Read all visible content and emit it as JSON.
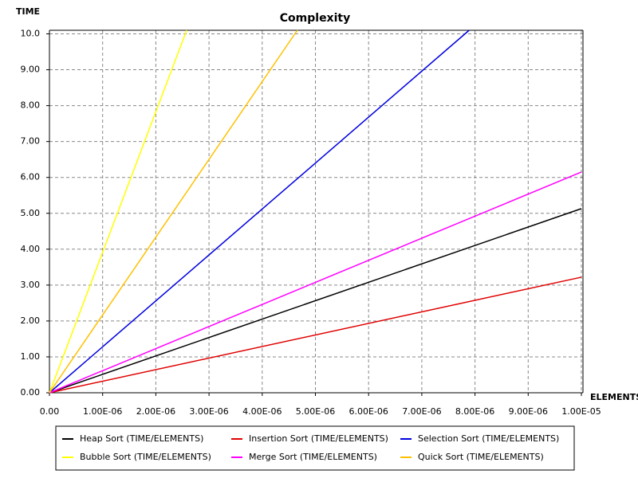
{
  "chart_data": {
    "type": "line",
    "title": "Complexity",
    "y_label": "TIME",
    "x_label": "ELEMENTS",
    "xlim": [
      0,
      1e-05
    ],
    "ylim": [
      0,
      10.1
    ],
    "xticks": [
      {
        "value": 0,
        "label": "0.00"
      },
      {
        "value": 1e-06,
        "label": "1.00E-06"
      },
      {
        "value": 2e-06,
        "label": "2.00E-06"
      },
      {
        "value": 3e-06,
        "label": "3.00E-06"
      },
      {
        "value": 4e-06,
        "label": "4.00E-06"
      },
      {
        "value": 5e-06,
        "label": "5.00E-06"
      },
      {
        "value": 6e-06,
        "label": "6.00E-06"
      },
      {
        "value": 7e-06,
        "label": "7.00E-06"
      },
      {
        "value": 8e-06,
        "label": "8.00E-06"
      },
      {
        "value": 9e-06,
        "label": "9.00E-06"
      },
      {
        "value": 1e-05,
        "label": "1.00E-05"
      }
    ],
    "yticks": [
      {
        "value": 0,
        "label": "0.00"
      },
      {
        "value": 1,
        "label": "1.00"
      },
      {
        "value": 2,
        "label": "2.00"
      },
      {
        "value": 3,
        "label": "3.00"
      },
      {
        "value": 4,
        "label": "4.00"
      },
      {
        "value": 5,
        "label": "5.00"
      },
      {
        "value": 6,
        "label": "6.00"
      },
      {
        "value": 7,
        "label": "7.00"
      },
      {
        "value": 8,
        "label": "8.00"
      },
      {
        "value": 9,
        "label": "9.00"
      },
      {
        "value": 10,
        "label": "10.0"
      }
    ],
    "grid": true,
    "series": [
      {
        "name": "Heap Sort (TIME/ELEMENTS)",
        "color": "#000000",
        "x": [
          0,
          1e-05
        ],
        "values": [
          0,
          5.13
        ]
      },
      {
        "name": "Insertion Sort (TIME/ELEMENTS)",
        "color": "#e00000",
        "x": [
          0,
          1e-05
        ],
        "values": [
          0,
          3.22
        ]
      },
      {
        "name": "Selection Sort (TIME/ELEMENTS)",
        "color": "#0000e0",
        "x": [
          0,
          7.89e-06
        ],
        "values": [
          0,
          10.1
        ]
      },
      {
        "name": "Bubble Sort (TIME/ELEMENTS)",
        "color": "#ffff00",
        "x": [
          0,
          2.58e-06
        ],
        "values": [
          0,
          10.1
        ]
      },
      {
        "name": "Merge Sort (TIME/ELEMENTS)",
        "color": "#ff00ff",
        "x": [
          0,
          1e-05
        ],
        "values": [
          0,
          6.15
        ]
      },
      {
        "name": "Quick Sort (TIME/ELEMENTS)",
        "color": "#ffc000",
        "x": [
          0,
          4.66e-06
        ],
        "values": [
          0,
          10.1
        ]
      }
    ]
  }
}
